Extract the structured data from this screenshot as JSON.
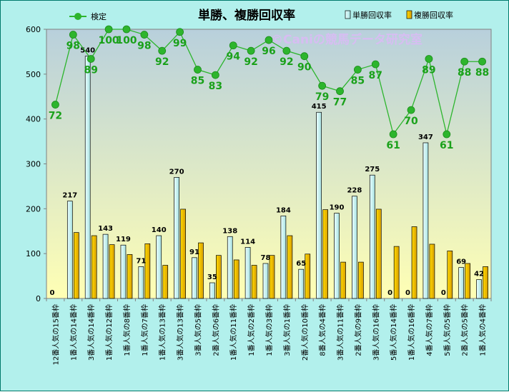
{
  "chart_data": {
    "type": "bar",
    "title": "単勝、複勝回収率",
    "watermark": "©Caniの競馬データ研究室",
    "ylim": [
      0,
      600
    ],
    "yticks": [
      0,
      100,
      200,
      300,
      400,
      500,
      600
    ],
    "grid": false,
    "legend_position": "top",
    "categories": [
      "12番人気の15番枠",
      "1番人気の14番枠",
      "3番人気の14番枠",
      "1番人気の12番枠",
      "1番人気の8番枠",
      "1番人気の7番枠",
      "1番人気の13番枠",
      "3番人気の13番枠",
      "3番人気の5番枠",
      "2番人気の6番枠",
      "1番人気の11番枠",
      "1番人気の2番枠",
      "1番人気の3番枠",
      "3番人気の1番枠",
      "2番人気の10番枠",
      "8番人気の4番枠",
      "3番人気の11番枠",
      "2番人気の9番枠",
      "3番人気の16番枠",
      "5番人気の14番枠",
      "1番人気の16番枠",
      "4番人気の7番枠",
      "5番人気の5番枠",
      "2番人気の5番枠",
      "1番人気の4番枠"
    ],
    "series": [
      {
        "name": "単勝回収率",
        "kind": "bar",
        "color": "#c9f3f3",
        "values": [
          0,
          217,
          540,
          143,
          119,
          71,
          140,
          270,
          91,
          35,
          138,
          114,
          78,
          184,
          65,
          415,
          190,
          228,
          275,
          0,
          0,
          347,
          0,
          69,
          42
        ]
      },
      {
        "name": "複勝回収率",
        "kind": "bar",
        "color": "#f2c200",
        "values": [
          0,
          147,
          140,
          120,
          98,
          122,
          74,
          199,
          124,
          96,
          86,
          74,
          96,
          140,
          99,
          198,
          81,
          81,
          199,
          116,
          160,
          121,
          106,
          78,
          71
        ]
      },
      {
        "name": "検定",
        "kind": "line",
        "color": "#2db52d",
        "values": [
          72,
          98,
          89,
          100,
          100,
          98,
          92,
          99,
          85,
          83,
          94,
          92,
          96,
          92,
          90,
          79,
          77,
          85,
          87,
          61,
          70,
          89,
          61,
          88,
          88
        ]
      }
    ]
  }
}
